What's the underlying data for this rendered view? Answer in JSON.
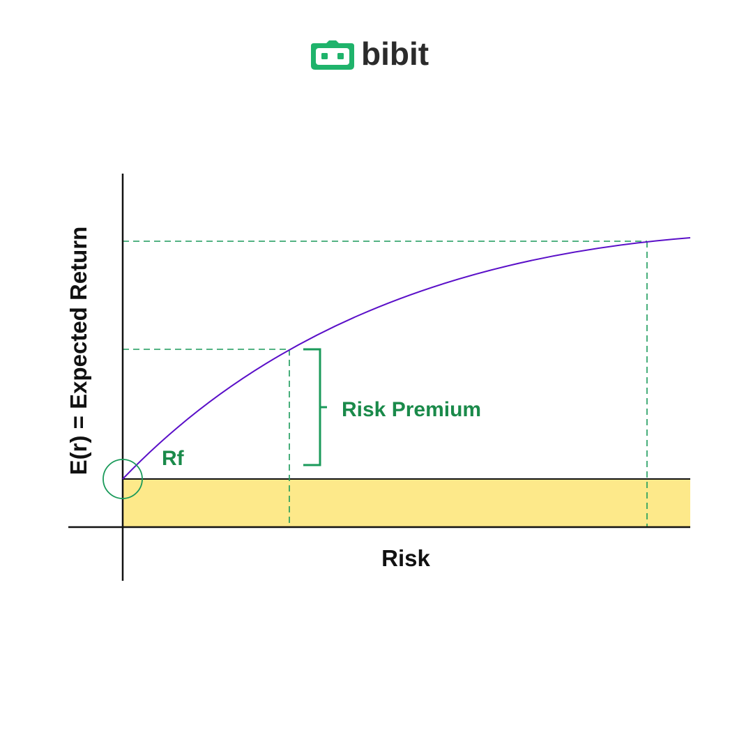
{
  "brand": {
    "name": "bibit",
    "logo_icon": "bibit-robot-logo-icon",
    "accent_color": "#1fb36b",
    "text_color": "#2b2b2b"
  },
  "diagram": {
    "y_axis_label": "E(r) = Expected Return",
    "x_axis_label": "Risk",
    "rf_label": "Rf",
    "risk_premium_label": "Risk Premium",
    "colors": {
      "curve": "#5a0fc8",
      "guides": "#1a9a5a",
      "risk_free_band": "#fde98a",
      "axes": "#111111"
    }
  }
}
